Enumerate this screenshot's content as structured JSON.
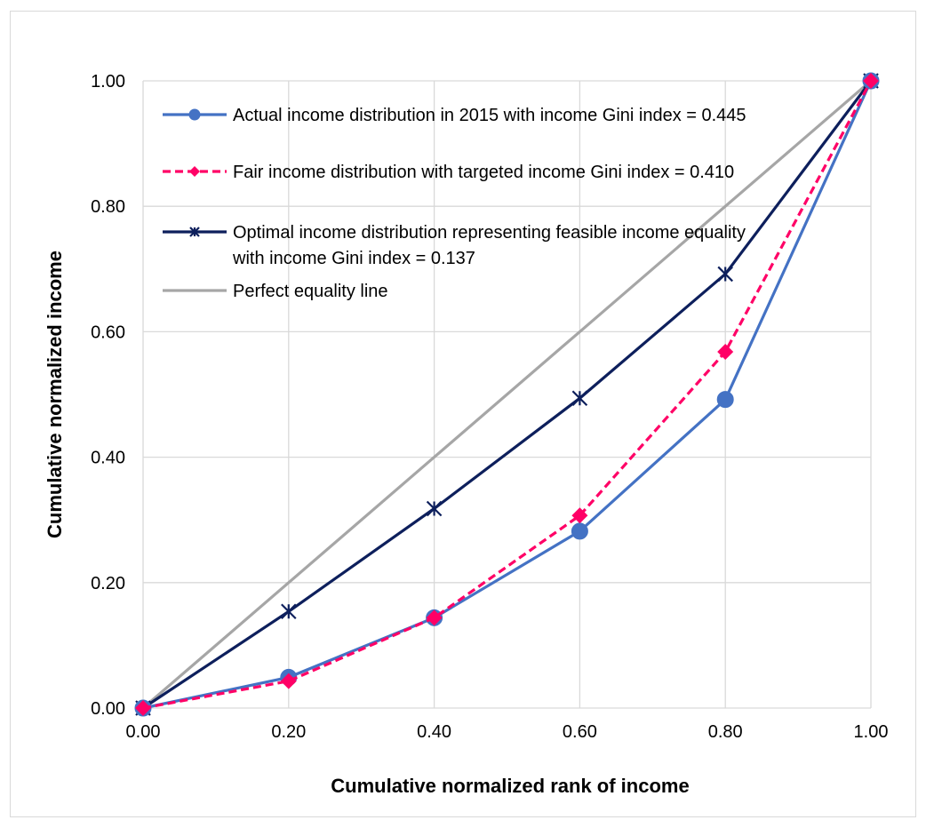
{
  "chart_data": {
    "type": "line",
    "title": "",
    "xlabel": "Cumulative normalized rank of income",
    "ylabel": "Cumulative normalized income",
    "xlim": [
      0,
      1
    ],
    "ylim": [
      0,
      1
    ],
    "x_ticks": [
      "0.00",
      "0.20",
      "0.40",
      "0.60",
      "0.80",
      "1.00"
    ],
    "y_ticks": [
      "0.00",
      "0.20",
      "0.40",
      "0.60",
      "0.80",
      "1.00"
    ],
    "grid": true,
    "legend_position": "top-left",
    "x": [
      0,
      0.2,
      0.4,
      0.6,
      0.8,
      1.0
    ],
    "series": [
      {
        "name": "Actual income distribution in 2015 with income Gini index = 0.445",
        "values": [
          0,
          0.049,
          0.144,
          0.282,
          0.492,
          1.0
        ],
        "color": "#4472c4",
        "marker": "circle",
        "dash": "solid"
      },
      {
        "name": "Fair income distribution with targeted income Gini index = 0.410",
        "values": [
          0,
          0.043,
          0.144,
          0.307,
          0.568,
          1.0
        ],
        "color": "#ff0066",
        "marker": "diamond",
        "dash": "dashed"
      },
      {
        "name": "Optimal income distribution representing feasible income equality",
        "name_line2": "with income Gini index = 0.137",
        "values": [
          0,
          0.154,
          0.318,
          0.494,
          0.692,
          1.0
        ],
        "color": "#0d1f5c",
        "marker": "star",
        "dash": "solid"
      },
      {
        "name": "Perfect equality line",
        "values": [
          0,
          0.2,
          0.4,
          0.6,
          0.8,
          1.0
        ],
        "color": "#a6a6a6",
        "marker": "none",
        "dash": "solid"
      }
    ]
  }
}
